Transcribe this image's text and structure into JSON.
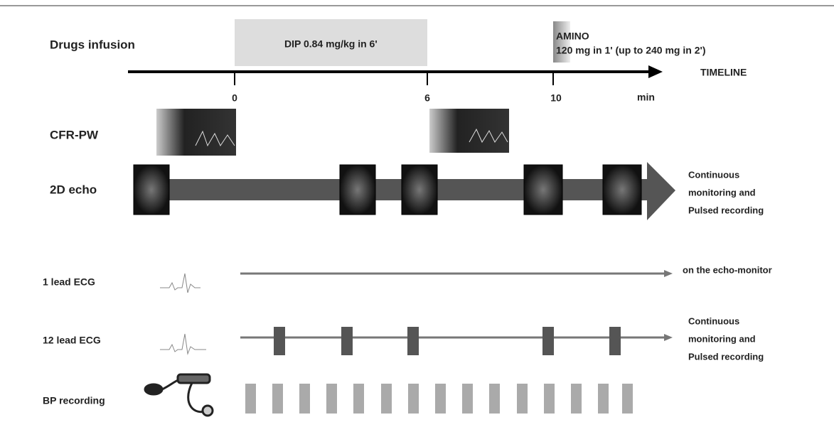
{
  "infusion": {
    "label": "Drugs infusion",
    "dip": "DIP 0.84 mg/kg in 6'",
    "amino_title": "AMINO",
    "amino_dose": "120 mg in 1' (up to 240 mg in 2')"
  },
  "timeline": {
    "label": "TIMELINE",
    "ticks": [
      "0",
      "6",
      "10"
    ],
    "unit": "min"
  },
  "rows": [
    {
      "label": "CFR-PW"
    },
    {
      "label": "2D echo",
      "note": [
        "Continuous",
        "monitoring and",
        "Pulsed recording"
      ]
    },
    {
      "label": "1 lead ECG",
      "note": [
        "on the echo-monitor"
      ]
    },
    {
      "label": "12 lead ECG",
      "note": [
        "Continuous",
        "monitoring and",
        "Pulsed recording"
      ]
    },
    {
      "label": "BP recording"
    }
  ]
}
